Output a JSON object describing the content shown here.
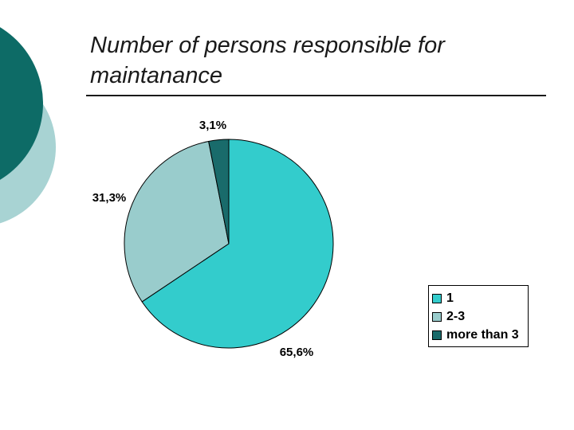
{
  "slide": {
    "title": "Number of persons responsible for maintanance"
  },
  "colors": {
    "deco_dark": "#0d6b66",
    "deco_light": "#a8d3d3"
  },
  "chart_data": {
    "type": "pie",
    "title": "",
    "slices": [
      {
        "name": "1",
        "value": 65.6,
        "label": "65,6%",
        "color": "#33cccc"
      },
      {
        "name": "2-3",
        "value": 31.3,
        "label": "31,3%",
        "color": "#99cccc"
      },
      {
        "name": "more than 3",
        "value": 3.1,
        "label": "3,1%",
        "color": "#196b6b"
      }
    ],
    "legend": {
      "position": "bottom-right",
      "entries": [
        "1",
        "2-3",
        "more than 3"
      ]
    }
  }
}
